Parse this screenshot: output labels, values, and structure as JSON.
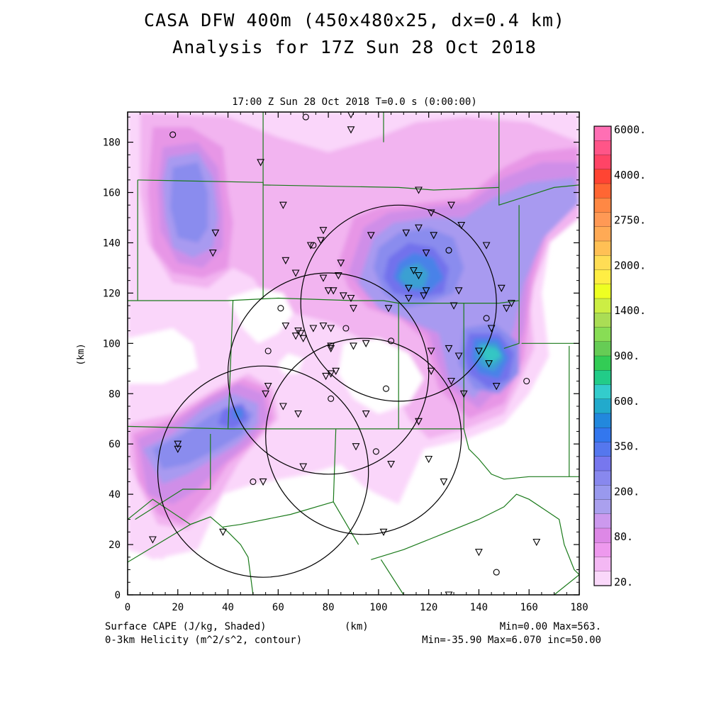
{
  "header": {
    "title_line1": "CASA DFW 400m (450x480x25, dx=0.4 km)",
    "title_line2": "Analysis for 17Z Sun 28 Oct 2018",
    "timestamp": "17:00 Z Sun 28 Oct 2018   T=0.0 s (0:00:00)"
  },
  "footer": {
    "left_line1": "Surface CAPE (J/kg, Shaded)",
    "left_line2": "0-3km Helicity (m^2/s^2, contour)",
    "center": "(km)",
    "right_line1": "Min=0.00 Max=563.",
    "right_line2": "Min=-35.90 Max=6.070 inc=50.00"
  },
  "map": {
    "x_axis": {
      "range": [
        0,
        180
      ],
      "ticks": [
        0,
        20,
        40,
        60,
        80,
        100,
        120,
        140,
        160,
        180
      ]
    },
    "y_axis": {
      "label": "(km)",
      "range": [
        0,
        192
      ],
      "ticks": [
        0,
        20,
        40,
        60,
        80,
        100,
        120,
        140,
        160,
        180
      ]
    },
    "colors": {
      "county_lines": "#1a7a1a",
      "frame": "#000000"
    },
    "radar_rings_km": [
      {
        "cx": 108,
        "cy": 116,
        "r": 39
      },
      {
        "cx": 80,
        "cy": 88,
        "r": 40
      },
      {
        "cx": 94,
        "cy": 63,
        "r": 39
      },
      {
        "cx": 54,
        "cy": 49,
        "r": 42
      }
    ],
    "stations": [
      {
        "x": 18,
        "y": 183,
        "sym": "o"
      },
      {
        "x": 71,
        "y": 190,
        "sym": "o"
      },
      {
        "x": 89,
        "y": 191,
        "sym": "v"
      },
      {
        "x": 89,
        "y": 185,
        "sym": "v"
      },
      {
        "x": 53,
        "y": 172,
        "sym": "v"
      },
      {
        "x": 116,
        "y": 161,
        "sym": "v"
      },
      {
        "x": 62,
        "y": 155,
        "sym": "v"
      },
      {
        "x": 129,
        "y": 155,
        "sym": "v"
      },
      {
        "x": 121,
        "y": 152,
        "sym": "v"
      },
      {
        "x": 133,
        "y": 147,
        "sym": "v"
      },
      {
        "x": 116,
        "y": 146,
        "sym": "v"
      },
      {
        "x": 35,
        "y": 144,
        "sym": "v"
      },
      {
        "x": 78,
        "y": 145,
        "sym": "v"
      },
      {
        "x": 111,
        "y": 144,
        "sym": "v"
      },
      {
        "x": 122,
        "y": 143,
        "sym": "v"
      },
      {
        "x": 97,
        "y": 143,
        "sym": "v"
      },
      {
        "x": 77,
        "y": 141,
        "sym": "v"
      },
      {
        "x": 73,
        "y": 139,
        "sym": "v"
      },
      {
        "x": 74,
        "y": 139,
        "sym": "o"
      },
      {
        "x": 143,
        "y": 139,
        "sym": "v"
      },
      {
        "x": 34,
        "y": 136,
        "sym": "v"
      },
      {
        "x": 119,
        "y": 136,
        "sym": "v"
      },
      {
        "x": 128,
        "y": 137,
        "sym": "o"
      },
      {
        "x": 63,
        "y": 133,
        "sym": "v"
      },
      {
        "x": 85,
        "y": 132,
        "sym": "v"
      },
      {
        "x": 114,
        "y": 129,
        "sym": "v"
      },
      {
        "x": 116,
        "y": 127,
        "sym": "v"
      },
      {
        "x": 67,
        "y": 128,
        "sym": "v"
      },
      {
        "x": 84,
        "y": 127,
        "sym": "v"
      },
      {
        "x": 78,
        "y": 126,
        "sym": "v"
      },
      {
        "x": 112,
        "y": 122,
        "sym": "v"
      },
      {
        "x": 119,
        "y": 121,
        "sym": "v"
      },
      {
        "x": 149,
        "y": 122,
        "sym": "v"
      },
      {
        "x": 80,
        "y": 121,
        "sym": "v"
      },
      {
        "x": 82,
        "y": 121,
        "sym": "v"
      },
      {
        "x": 132,
        "y": 121,
        "sym": "v"
      },
      {
        "x": 112,
        "y": 118,
        "sym": "v"
      },
      {
        "x": 86,
        "y": 119,
        "sym": "v"
      },
      {
        "x": 118,
        "y": 119,
        "sym": "v"
      },
      {
        "x": 89,
        "y": 118,
        "sym": "v"
      },
      {
        "x": 153,
        "y": 116,
        "sym": "v"
      },
      {
        "x": 151,
        "y": 114,
        "sym": "v"
      },
      {
        "x": 130,
        "y": 115,
        "sym": "v"
      },
      {
        "x": 104,
        "y": 114,
        "sym": "v"
      },
      {
        "x": 90,
        "y": 114,
        "sym": "v"
      },
      {
        "x": 61,
        "y": 114,
        "sym": "o"
      },
      {
        "x": 143,
        "y": 110,
        "sym": "o"
      },
      {
        "x": 63,
        "y": 107,
        "sym": "v"
      },
      {
        "x": 78,
        "y": 107,
        "sym": "v"
      },
      {
        "x": 81,
        "y": 106,
        "sym": "v"
      },
      {
        "x": 87,
        "y": 106,
        "sym": "o"
      },
      {
        "x": 74,
        "y": 106,
        "sym": "v"
      },
      {
        "x": 145,
        "y": 106,
        "sym": "v"
      },
      {
        "x": 68,
        "y": 105,
        "sym": "v"
      },
      {
        "x": 69,
        "y": 104,
        "sym": "v"
      },
      {
        "x": 67,
        "y": 103,
        "sym": "v"
      },
      {
        "x": 70,
        "y": 102,
        "sym": "v"
      },
      {
        "x": 105,
        "y": 101,
        "sym": "o"
      },
      {
        "x": 95,
        "y": 100,
        "sym": "v"
      },
      {
        "x": 81,
        "y": 99,
        "sym": "v"
      },
      {
        "x": 90,
        "y": 99,
        "sym": "v"
      },
      {
        "x": 81,
        "y": 98,
        "sym": "v"
      },
      {
        "x": 128,
        "y": 98,
        "sym": "v"
      },
      {
        "x": 140,
        "y": 97,
        "sym": "v"
      },
      {
        "x": 121,
        "y": 97,
        "sym": "v"
      },
      {
        "x": 56,
        "y": 97,
        "sym": "o"
      },
      {
        "x": 132,
        "y": 95,
        "sym": "v"
      },
      {
        "x": 144,
        "y": 92,
        "sym": "v"
      },
      {
        "x": 121,
        "y": 89,
        "sym": "v"
      },
      {
        "x": 83,
        "y": 89,
        "sym": "v"
      },
      {
        "x": 81,
        "y": 88,
        "sym": "v"
      },
      {
        "x": 79,
        "y": 87,
        "sym": "v"
      },
      {
        "x": 129,
        "y": 85,
        "sym": "v"
      },
      {
        "x": 159,
        "y": 85,
        "sym": "o"
      },
      {
        "x": 56,
        "y": 83,
        "sym": "v"
      },
      {
        "x": 147,
        "y": 83,
        "sym": "v"
      },
      {
        "x": 103,
        "y": 82,
        "sym": "o"
      },
      {
        "x": 55,
        "y": 80,
        "sym": "v"
      },
      {
        "x": 134,
        "y": 80,
        "sym": "v"
      },
      {
        "x": 81,
        "y": 78,
        "sym": "o"
      },
      {
        "x": 62,
        "y": 75,
        "sym": "v"
      },
      {
        "x": 68,
        "y": 72,
        "sym": "v"
      },
      {
        "x": 95,
        "y": 72,
        "sym": "v"
      },
      {
        "x": 116,
        "y": 69,
        "sym": "v"
      },
      {
        "x": 20,
        "y": 60,
        "sym": "v"
      },
      {
        "x": 20,
        "y": 58,
        "sym": "v"
      },
      {
        "x": 91,
        "y": 59,
        "sym": "v"
      },
      {
        "x": 99,
        "y": 57,
        "sym": "o"
      },
      {
        "x": 120,
        "y": 54,
        "sym": "v"
      },
      {
        "x": 105,
        "y": 52,
        "sym": "v"
      },
      {
        "x": 70,
        "y": 51,
        "sym": "v"
      },
      {
        "x": 50,
        "y": 45,
        "sym": "o"
      },
      {
        "x": 54,
        "y": 45,
        "sym": "v"
      },
      {
        "x": 126,
        "y": 45,
        "sym": "v"
      },
      {
        "x": 38,
        "y": 25,
        "sym": "v"
      },
      {
        "x": 102,
        "y": 25,
        "sym": "v"
      },
      {
        "x": 10,
        "y": 22,
        "sym": "v"
      },
      {
        "x": 163,
        "y": 21,
        "sym": "v"
      },
      {
        "x": 140,
        "y": 17,
        "sym": "v"
      },
      {
        "x": 147,
        "y": 9,
        "sym": "o"
      },
      {
        "x": 128,
        "y": 0,
        "sym": "v"
      }
    ]
  },
  "colorbar": {
    "labels": [
      "6000.",
      "4000.",
      "2750.",
      "2000.",
      "1400.",
      "900.",
      "600.",
      "350.",
      "200.",
      "80.",
      "20."
    ],
    "swatches": [
      "#ff6fb4",
      "#ff5588",
      "#ff4466",
      "#ff4433",
      "#ff6633",
      "#ff8844",
      "#ff9955",
      "#ffaa55",
      "#ffc055",
      "#ffdd55",
      "#ffee44",
      "#eeff22",
      "#ccee44",
      "#aadd55",
      "#88dd55",
      "#66cc55",
      "#33cc55",
      "#22cc88",
      "#33cccc",
      "#22aacc",
      "#2288dd",
      "#3377ee",
      "#5577ee",
      "#7777ee",
      "#8888ee",
      "#9999ee",
      "#aaa0ee",
      "#cc99ee",
      "#dd88e6",
      "#ee99ee",
      "#f4b8f4",
      "#fad8fa"
    ],
    "field_colors": {
      "c20": "#fad6fa",
      "c40": "#f2b4f0",
      "c80": "#e796e6",
      "c120": "#cf8ee8",
      "c160": "#a89af0",
      "c200": "#8a8cee",
      "c260": "#7272ec",
      "c350": "#4a82e8",
      "c450": "#3aa0d2",
      "c550": "#36c6c4"
    }
  }
}
